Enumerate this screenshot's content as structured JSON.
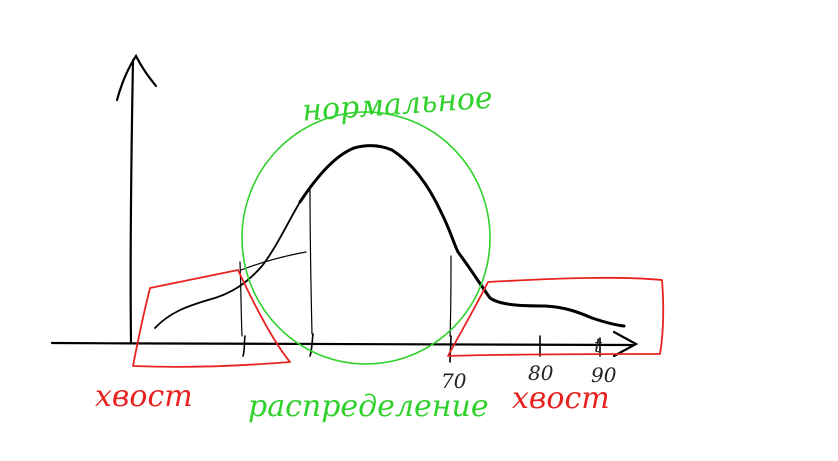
{
  "labels": {
    "normal_top": "нормальное",
    "normal_bottom": "распределение",
    "tail_left": "хвост",
    "tail_right": "хвост"
  },
  "ticks": {
    "t70": "70",
    "t80": "80",
    "t90": "90",
    "t": "t"
  },
  "colors": {
    "ink": "#000000",
    "tail": "#e8231f",
    "normal": "#2fd12a"
  }
}
